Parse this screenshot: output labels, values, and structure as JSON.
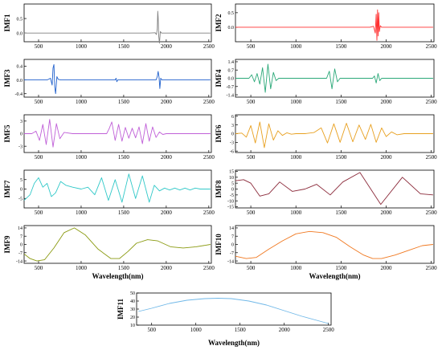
{
  "chart_data": [
    {
      "id": "imf1",
      "type": "line",
      "ylabel": "IMF1",
      "color": "#808080",
      "ylim": [
        -0.3,
        1.0
      ],
      "yticks": [
        0,
        0.5
      ],
      "ytick_labels": [
        "0.0",
        "0.5"
      ],
      "x": [
        330,
        1800,
        1870,
        1885,
        1895,
        1900,
        1905,
        1912,
        1920,
        1930,
        1945,
        2520
      ],
      "y": [
        0,
        0,
        0.01,
        -0.05,
        0.15,
        0.75,
        0.55,
        -0.1,
        -0.35,
        0.05,
        0,
        0
      ]
    },
    {
      "id": "imf2",
      "type": "line",
      "ylabel": "IMF2",
      "color": "#ff3030",
      "ylim": [
        -0.5,
        0.8
      ],
      "yticks": [
        0,
        0.5
      ],
      "ytick_labels": [
        "0.0",
        "0.5"
      ],
      "x": [
        330,
        1820,
        1860,
        1880,
        1890,
        1898,
        1905,
        1912,
        1918,
        1925,
        1935,
        1950,
        2520
      ],
      "y": [
        0,
        0,
        0.03,
        -0.2,
        0.45,
        -0.45,
        0.6,
        -0.3,
        0.5,
        -0.15,
        0.05,
        0,
        0
      ]
    },
    {
      "id": "imf3",
      "type": "line",
      "ylabel": "IMF3",
      "color": "#1e5fcc",
      "ylim": [
        -0.5,
        0.6
      ],
      "yticks": [
        -0.4,
        0,
        0.4
      ],
      "ytick_labels": [
        "-0.4",
        "0.0",
        "0.4"
      ],
      "x": [
        330,
        600,
        640,
        660,
        670,
        680,
        690,
        700,
        715,
        730,
        760,
        1400,
        1410,
        1420,
        1430,
        1880,
        1895,
        1905,
        1915,
        1925,
        1935,
        1950,
        2520
      ],
      "y": [
        0,
        0,
        0.05,
        -0.15,
        0.35,
        0.45,
        -0.2,
        -0.4,
        0.1,
        0.02,
        0,
        0,
        0.05,
        -0.05,
        0,
        0,
        0.1,
        0.25,
        0.08,
        -0.25,
        0.05,
        0,
        0
      ]
    },
    {
      "id": "imf4",
      "type": "line",
      "ylabel": "IMF4",
      "color": "#2aa878",
      "ylim": [
        -1.6,
        1.6
      ],
      "yticks": [
        -1.4,
        -0.7,
        0,
        0.7,
        1.4
      ],
      "ytick_labels": [
        "-1.4",
        "-0.7",
        "0.0",
        "0.7",
        "1.4"
      ],
      "x": [
        330,
        480,
        510,
        540,
        570,
        600,
        630,
        660,
        690,
        720,
        750,
        780,
        810,
        1340,
        1370,
        1400,
        1430,
        1460,
        1490,
        1850,
        1870,
        1890,
        1910,
        1930,
        1950,
        2520
      ],
      "y": [
        0,
        0,
        0.3,
        -0.3,
        0.4,
        -0.5,
        0.9,
        -1.2,
        1.2,
        -0.9,
        0.5,
        -0.2,
        0,
        0,
        0.6,
        -0.9,
        0.8,
        -0.3,
        0,
        0,
        0.2,
        -0.4,
        0.4,
        -0.2,
        0,
        0
      ]
    },
    {
      "id": "imf5",
      "type": "line",
      "ylabel": "IMF5",
      "color": "#c060d8",
      "ylim": [
        -4.5,
        4.5
      ],
      "yticks": [
        -3,
        0,
        3
      ],
      "ytick_labels": [
        "-3",
        "0",
        "3"
      ],
      "x": [
        330,
        420,
        470,
        510,
        550,
        590,
        630,
        670,
        710,
        750,
        800,
        900,
        1300,
        1330,
        1360,
        1400,
        1440,
        1480,
        1520,
        1560,
        1600,
        1640,
        1680,
        1720,
        1760,
        1800,
        1840,
        1880,
        1920,
        1960,
        2000,
        2520
      ],
      "y": [
        0,
        0,
        0.6,
        -1.6,
        2.2,
        -2.6,
        3.4,
        -3.2,
        2.4,
        -1.2,
        0.3,
        0,
        0,
        1.2,
        2.8,
        -1.6,
        2.2,
        -1.8,
        1.5,
        -1.1,
        1.3,
        -1.0,
        1.6,
        -2.4,
        2.4,
        -1.8,
        1.6,
        -0.9,
        0.4,
        -0.2,
        0,
        0
      ]
    },
    {
      "id": "imf6",
      "type": "line",
      "ylabel": "IMF6",
      "color": "#e8a020",
      "ylim": [
        -6.5,
        6.5
      ],
      "yticks": [
        -6,
        -3,
        0,
        3,
        6
      ],
      "ytick_labels": [
        "-6",
        "-3",
        "0",
        "3",
        "6"
      ],
      "x": [
        330,
        400,
        450,
        500,
        550,
        600,
        650,
        700,
        750,
        800,
        850,
        900,
        950,
        1000,
        1100,
        1200,
        1280,
        1350,
        1420,
        1490,
        1560,
        1630,
        1700,
        1770,
        1830,
        1890,
        1950,
        2000,
        2060,
        2120,
        2200,
        2520
      ],
      "y": [
        0,
        0.2,
        -1.2,
        2.8,
        -3.2,
        4.0,
        -4.8,
        3.4,
        -2.2,
        1.0,
        -0.6,
        0.3,
        -0.2,
        0,
        0,
        0.4,
        2.0,
        -3.2,
        3.4,
        -3.0,
        3.6,
        -2.8,
        3.0,
        -2.0,
        3.2,
        -3.0,
        2.0,
        -1.0,
        0.6,
        -0.4,
        0,
        0
      ]
    },
    {
      "id": "imf7",
      "type": "line",
      "ylabel": "IMF7",
      "color": "#30c8c8",
      "ylim": [
        -10,
        10
      ],
      "yticks": [
        -5,
        0,
        5
      ],
      "ytick_labels": [
        "-5",
        "0",
        "5"
      ],
      "x": [
        330,
        400,
        450,
        500,
        550,
        600,
        650,
        700,
        760,
        820,
        900,
        1000,
        1080,
        1160,
        1240,
        1320,
        1400,
        1480,
        1560,
        1640,
        1720,
        1800,
        1860,
        1920,
        1980,
        2040,
        2100,
        2160,
        2220,
        2280,
        2340,
        2400,
        2460,
        2520
      ],
      "y": [
        -6,
        -3,
        3,
        6,
        1,
        3,
        -4,
        -2,
        4,
        2,
        1,
        0,
        1,
        -3,
        6,
        -6,
        5,
        -7,
        8,
        -5,
        7,
        -7,
        2,
        -1,
        0.5,
        -0.5,
        0.5,
        -0.5,
        0.5,
        -0.5,
        0.5,
        0,
        0,
        0
      ]
    },
    {
      "id": "imf8",
      "type": "line",
      "ylabel": "IMF8",
      "color": "#8b2a3a",
      "ylim": [
        -16,
        16
      ],
      "yticks": [
        -15,
        -10,
        -5,
        0,
        5,
        10,
        15
      ],
      "ytick_labels": [
        "-15",
        "-10",
        "-5",
        "0",
        "5",
        "10",
        "15"
      ],
      "x": [
        330,
        420,
        500,
        600,
        700,
        820,
        960,
        1100,
        1230,
        1380,
        1520,
        1710,
        1940,
        2180,
        2380,
        2520
      ],
      "y": [
        7,
        8,
        5,
        -6,
        -4,
        6,
        -2,
        0,
        4,
        -5,
        6,
        14,
        -13,
        10,
        -4,
        -5
      ]
    },
    {
      "id": "imf9",
      "type": "line",
      "ylabel": "IMF9",
      "color": "#8a9a10",
      "ylim": [
        -16,
        16
      ],
      "yticks": [
        -14,
        -7,
        0,
        7,
        14
      ],
      "ytick_labels": [
        "-14",
        "-7",
        "0",
        "7",
        "14"
      ],
      "x": [
        330,
        400,
        480,
        570,
        680,
        800,
        920,
        1050,
        1200,
        1350,
        1450,
        1550,
        1650,
        1780,
        1900,
        2050,
        2200,
        2350,
        2520
      ],
      "y": [
        -8,
        -12,
        -14,
        -13,
        -3,
        10,
        14,
        8,
        -4,
        -12,
        -12,
        -6,
        1,
        4,
        3,
        -2,
        -3,
        -2,
        0
      ]
    },
    {
      "id": "imf10",
      "type": "line",
      "ylabel": "IMF10",
      "color": "#f07820",
      "ylim": [
        -16,
        16
      ],
      "yticks": [
        -14,
        -7,
        0,
        7,
        14
      ],
      "ytick_labels": [
        "-14",
        "-7",
        "0",
        "7",
        "14"
      ],
      "x": [
        330,
        450,
        560,
        700,
        850,
        1000,
        1150,
        1300,
        1450,
        1600,
        1750,
        1850,
        1950,
        2100,
        2250,
        2400,
        2520
      ],
      "y": [
        -10,
        -12,
        -11,
        -4,
        3,
        9,
        11,
        10,
        6,
        -2,
        -9,
        -12,
        -12,
        -9,
        -5,
        -1,
        0
      ]
    },
    {
      "id": "imf11",
      "type": "line",
      "ylabel": "IMF11",
      "color": "#70b8e8",
      "ylim": [
        10,
        50
      ],
      "yticks": [
        10,
        20,
        30,
        40,
        50
      ],
      "ytick_labels": [
        "10",
        "20",
        "30",
        "40",
        "50"
      ],
      "x": [
        350,
        500,
        700,
        900,
        1100,
        1250,
        1400,
        1600,
        1800,
        2000,
        2200,
        2400,
        2500
      ],
      "y": [
        27,
        31,
        37,
        41,
        43,
        43.5,
        43,
        40,
        35,
        28,
        21,
        15,
        12
      ]
    }
  ],
  "xaxis": {
    "label": "Wavelength(nm)",
    "ticks": [
      500,
      1000,
      1500,
      2000,
      2500
    ],
    "tick_labels": [
      "500",
      "1000",
      "1500",
      "2000",
      "2500"
    ]
  }
}
